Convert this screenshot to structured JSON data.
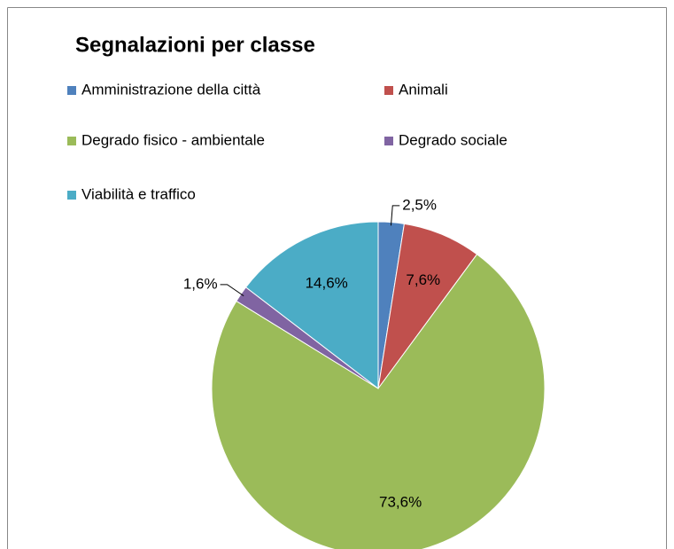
{
  "chart_data": {
    "type": "pie",
    "title": "Segnalazioni per classe",
    "categories": [
      "Amministrazione della città",
      "Animali",
      "Degrado fisico - ambientale",
      "Degrado sociale",
      "Viabilità e traffico"
    ],
    "values": [
      2.5,
      7.6,
      73.6,
      1.6,
      14.6
    ],
    "value_labels": [
      "2,5%",
      "7,6%",
      "73,6%",
      "1,6%",
      "14,6%"
    ],
    "colors": [
      "#4f81bd",
      "#c0504d",
      "#9bbb59",
      "#8064a2",
      "#4bacc6"
    ],
    "legend": "top"
  }
}
